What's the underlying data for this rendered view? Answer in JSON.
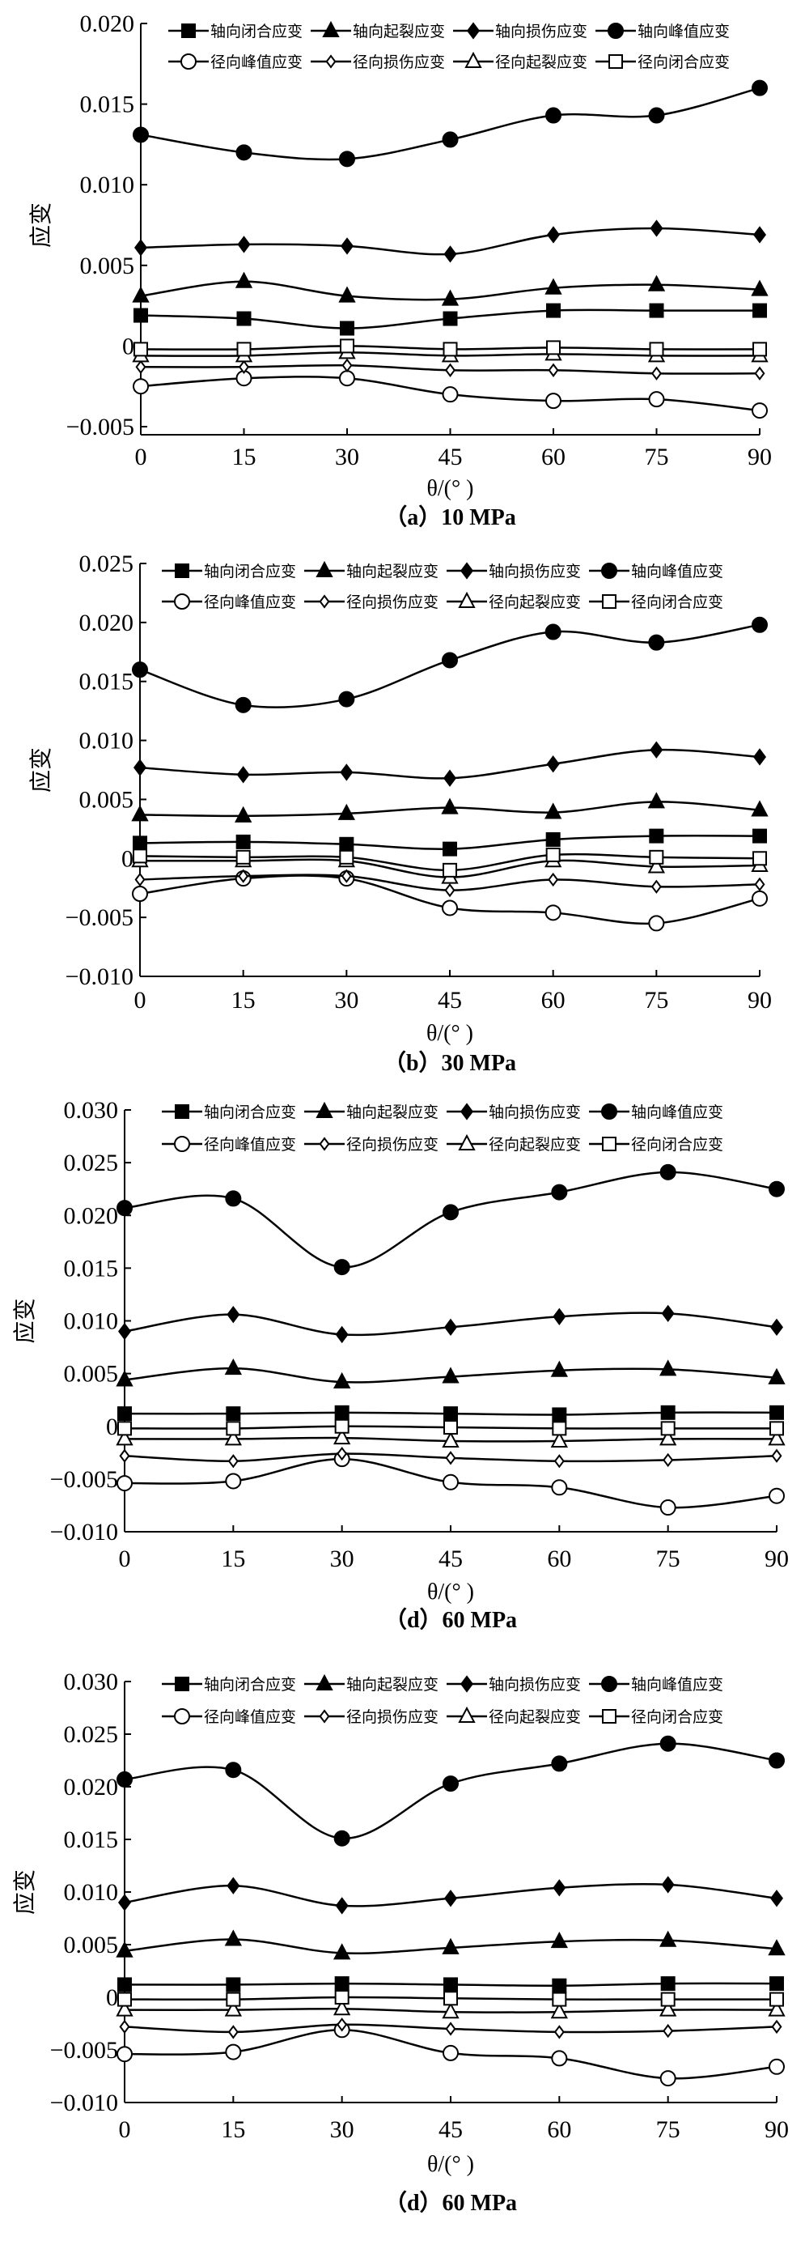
{
  "legend_markers": [
    "filled-square",
    "filled-triangle",
    "filled-diamond",
    "filled-circle",
    "open-circle",
    "open-diamond",
    "open-triangle",
    "open-square"
  ],
  "line_color": "#000000",
  "chart_data": [
    {
      "type": "line",
      "caption": "（a）10 MPa",
      "xlabel": "θ/(°  )",
      "ylabel": "应变",
      "x": [
        0,
        15,
        30,
        45,
        60,
        75,
        90
      ],
      "xticks": [
        "0",
        "15",
        "30",
        "45",
        "60",
        "75",
        "90"
      ],
      "ylim": [
        -0.005,
        0.02
      ],
      "yticks": [
        "-0.005",
        "0",
        "0.005",
        "0.010",
        "0.015",
        "0.020"
      ],
      "grid": false,
      "legend_position": "top",
      "series": [
        {
          "name": "轴向闭合应变",
          "values": [
            0.0019,
            0.0017,
            0.0011,
            0.0017,
            0.0022,
            0.0022,
            0.0022
          ]
        },
        {
          "name": "轴向起裂应变",
          "values": [
            0.0031,
            0.004,
            0.0031,
            0.0029,
            0.0036,
            0.0038,
            0.0035
          ]
        },
        {
          "name": "轴向损伤应变",
          "values": [
            0.0061,
            0.0063,
            0.0062,
            0.0057,
            0.0069,
            0.0073,
            0.0069
          ]
        },
        {
          "name": "轴向峰值应变",
          "values": [
            0.0131,
            0.012,
            0.0116,
            0.0128,
            0.0143,
            0.0143,
            0.016
          ]
        },
        {
          "name": "径向峰值应变",
          "values": [
            -0.0025,
            -0.002,
            -0.002,
            -0.003,
            -0.0034,
            -0.0033,
            -0.004
          ]
        },
        {
          "name": "径向损伤应变",
          "values": [
            -0.0013,
            -0.0013,
            -0.0012,
            -0.0015,
            -0.0015,
            -0.0017,
            -0.0017
          ]
        },
        {
          "name": "径向起裂应变",
          "values": [
            -0.0006,
            -0.0006,
            -0.0004,
            -0.0006,
            -0.0005,
            -0.0006,
            -0.0006
          ]
        },
        {
          "name": "径向闭合应变",
          "values": [
            -0.0002,
            -0.0002,
            0.0,
            -0.0002,
            -0.0001,
            -0.0002,
            -0.0002
          ]
        }
      ]
    },
    {
      "type": "line",
      "caption": "（b）30 MPa",
      "xlabel": "θ/(°  )",
      "ylabel": "应变",
      "x": [
        0,
        15,
        30,
        45,
        60,
        75,
        90
      ],
      "xticks": [
        "0",
        "15",
        "30",
        "45",
        "60",
        "75",
        "90"
      ],
      "ylim": [
        -0.01,
        0.025
      ],
      "yticks": [
        "-0.010",
        "-0.005",
        "0",
        "0.005",
        "0.010",
        "0.015",
        "0.020",
        "0.025"
      ],
      "grid": false,
      "legend_position": "top",
      "series": [
        {
          "name": "轴向闭合应变",
          "values": [
            0.0013,
            0.0014,
            0.0012,
            0.0008,
            0.0016,
            0.0019,
            0.0019
          ]
        },
        {
          "name": "轴向起裂应变",
          "values": [
            0.0037,
            0.0036,
            0.0038,
            0.0043,
            0.0039,
            0.0048,
            0.0041
          ]
        },
        {
          "name": "轴向损伤应变",
          "values": [
            0.0077,
            0.0071,
            0.0073,
            0.0068,
            0.008,
            0.0092,
            0.0086
          ]
        },
        {
          "name": "轴向峰值应变",
          "values": [
            0.016,
            0.013,
            0.0135,
            0.0168,
            0.0192,
            0.0183,
            0.0198
          ]
        },
        {
          "name": "径向峰值应变",
          "values": [
            -0.003,
            -0.0017,
            -0.0017,
            -0.0042,
            -0.0046,
            -0.0055,
            -0.0034
          ]
        },
        {
          "name": "径向损伤应变",
          "values": [
            -0.0018,
            -0.0015,
            -0.0015,
            -0.0027,
            -0.0018,
            -0.0024,
            -0.0022
          ]
        },
        {
          "name": "径向起裂应变",
          "values": [
            -0.0002,
            -0.0002,
            -0.0002,
            -0.0016,
            -0.0002,
            -0.0007,
            -0.0006
          ]
        },
        {
          "name": "径向闭合应变",
          "values": [
            0.0002,
            0.0001,
            0.0001,
            -0.001,
            0.0003,
            0.0001,
            0.0
          ]
        }
      ]
    },
    {
      "type": "line",
      "caption": "（d）60 MPa",
      "xlabel": "θ/(°  )",
      "ylabel": "应变",
      "x": [
        0,
        15,
        30,
        45,
        60,
        75,
        90
      ],
      "xticks": [
        "0",
        "15",
        "30",
        "45",
        "60",
        "75",
        "90"
      ],
      "ylim": [
        -0.01,
        0.03
      ],
      "yticks": [
        "-0.010",
        "-0.005",
        "0",
        "0.005",
        "0.010",
        "0.015",
        "0.020",
        "0.025",
        "0.030"
      ],
      "grid": false,
      "legend_position": "top",
      "series": [
        {
          "name": "轴向闭合应变",
          "values": [
            0.0012,
            0.0012,
            0.0013,
            0.0012,
            0.0011,
            0.0013,
            0.0013
          ]
        },
        {
          "name": "轴向起裂应变",
          "values": [
            0.0044,
            0.0055,
            0.0042,
            0.0047,
            0.0053,
            0.0054,
            0.0046
          ]
        },
        {
          "name": "轴向损伤应变",
          "values": [
            0.009,
            0.0106,
            0.0087,
            0.0094,
            0.0104,
            0.0107,
            0.0094
          ]
        },
        {
          "name": "轴向峰值应变",
          "values": [
            0.0207,
            0.0216,
            0.0151,
            0.0203,
            0.0222,
            0.0241,
            0.0225
          ]
        },
        {
          "name": "径向峰值应变",
          "values": [
            -0.0054,
            -0.0052,
            -0.0031,
            -0.0053,
            -0.0058,
            -0.0077,
            -0.0066
          ]
        },
        {
          "name": "径向损伤应变",
          "values": [
            -0.0028,
            -0.0033,
            -0.0026,
            -0.003,
            -0.0033,
            -0.0032,
            -0.0028
          ]
        },
        {
          "name": "径向起裂应变",
          "values": [
            -0.0012,
            -0.0012,
            -0.0011,
            -0.0014,
            -0.0014,
            -0.0012,
            -0.0012
          ]
        },
        {
          "name": "径向闭合应变",
          "values": [
            -0.0002,
            -0.0002,
            0.0,
            -0.0001,
            -0.0002,
            -0.0002,
            -0.0002
          ]
        }
      ]
    },
    {
      "type": "line",
      "caption": "（d）60 MPa",
      "xlabel": "θ/(°  )",
      "ylabel": "应变",
      "x": [
        0,
        15,
        30,
        45,
        60,
        75,
        90
      ],
      "xticks": [
        "0",
        "15",
        "30",
        "45",
        "60",
        "75",
        "90"
      ],
      "ylim": [
        -0.01,
        0.03
      ],
      "yticks": [
        "-0.010",
        "-0.005",
        "0",
        "0.005",
        "0.010",
        "0.015",
        "0.020",
        "0.025",
        "0.030"
      ],
      "grid": false,
      "legend_position": "top",
      "series": [
        {
          "name": "轴向闭合应变",
          "values": [
            0.0012,
            0.0012,
            0.0013,
            0.0012,
            0.0011,
            0.0013,
            0.0013
          ]
        },
        {
          "name": "轴向起裂应变",
          "values": [
            0.0044,
            0.0055,
            0.0042,
            0.0047,
            0.0053,
            0.0054,
            0.0046
          ]
        },
        {
          "name": "轴向损伤应变",
          "values": [
            0.009,
            0.0106,
            0.0087,
            0.0094,
            0.0104,
            0.0107,
            0.0094
          ]
        },
        {
          "name": "轴向峰值应变",
          "values": [
            0.0207,
            0.0216,
            0.0151,
            0.0203,
            0.0222,
            0.0241,
            0.0225
          ]
        },
        {
          "name": "径向峰值应变",
          "values": [
            -0.0054,
            -0.0052,
            -0.0031,
            -0.0053,
            -0.0058,
            -0.0077,
            -0.0066
          ]
        },
        {
          "name": "径向损伤应变",
          "values": [
            -0.0028,
            -0.0033,
            -0.0026,
            -0.003,
            -0.0033,
            -0.0032,
            -0.0028
          ]
        },
        {
          "name": "径向起裂应变",
          "values": [
            -0.0012,
            -0.0012,
            -0.0011,
            -0.0014,
            -0.0014,
            -0.0012,
            -0.0012
          ]
        },
        {
          "name": "径向闭合应变",
          "values": [
            -0.0002,
            -0.0002,
            0.0,
            -0.0001,
            -0.0002,
            -0.0002,
            -0.0002
          ]
        }
      ]
    }
  ]
}
